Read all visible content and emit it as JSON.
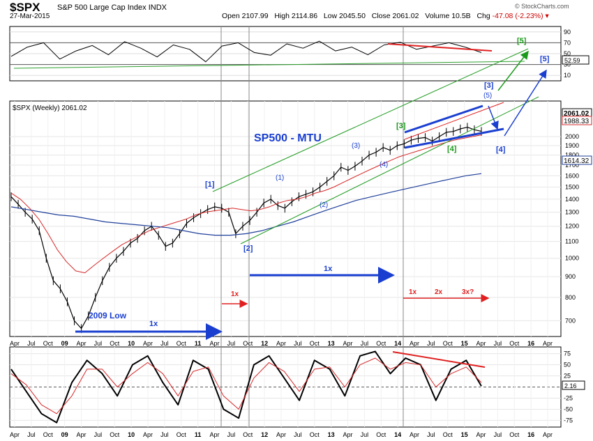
{
  "header": {
    "symbol": "$SPX",
    "name": "S&P 500 Large Cap Index",
    "exchange": "INDX",
    "date": "27-Mar-2015",
    "open_label": "Open",
    "open": "2107.99",
    "high_label": "High",
    "high": "2114.86",
    "low_label": "Low",
    "low": "2045.50",
    "close_label": "Close",
    "close": "2061.02",
    "volume_label": "Volume",
    "volume": "10.5B",
    "chg_label": "Chg",
    "chg": "-47.08 (-2.23%)",
    "credit": "© StockCharts.com"
  },
  "colors": {
    "price": "#000000",
    "ma_fast": "#d62728",
    "ma_slow": "#1f3f9a",
    "channel": "#2ca02c",
    "blue_annot": "#1a3fd0",
    "red_annot": "#e02020",
    "green_annot": "#1a9a1a"
  },
  "chart_data": [
    {
      "type": "line",
      "panel": "rsi",
      "y_ticks": [
        10,
        30,
        50,
        70,
        90
      ],
      "ylim": [
        0,
        100
      ],
      "reference_lines": [
        30,
        70
      ],
      "last_value_label": "52.59",
      "series": [
        {
          "values": [
            45,
            62,
            70,
            40,
            55,
            65,
            48,
            72,
            60,
            44,
            66,
            58,
            35,
            64,
            70,
            52,
            47,
            68,
            60,
            73,
            55,
            62,
            48,
            66,
            71,
            58,
            64,
            70,
            62,
            52
          ]
        }
      ]
    },
    {
      "type": "line",
      "panel": "price",
      "title": "SP500 - MTU",
      "legend": "$SPX (Weekly) 2061.02",
      "scale": "log",
      "ylim": [
        640,
        2450
      ],
      "y_ticks": [
        700,
        800,
        900,
        1000,
        1100,
        1200,
        1300,
        1400,
        1500,
        1600,
        1700,
        1800,
        1900,
        2000
      ],
      "x_ticks": [
        "Apr",
        "Jul",
        "Oct",
        "09",
        "Apr",
        "Jul",
        "Oct",
        "10",
        "Apr",
        "Jul",
        "Oct",
        "11",
        "Apr",
        "Jul",
        "Oct",
        "12",
        "Apr",
        "Jul",
        "Oct",
        "13",
        "Apr",
        "Jul",
        "Oct",
        "14",
        "Apr",
        "Jul",
        "Oct",
        "15",
        "Apr",
        "Jul",
        "Oct",
        "16",
        "Apr"
      ],
      "price_labels": [
        "2061.02",
        "1988.33",
        "1614.32"
      ],
      "x_start": 2008.25,
      "series": [
        {
          "values": [
            1420,
            1360,
            1300,
            1250,
            1170,
            1000,
            880,
            840,
            780,
            700,
            670,
            720,
            800,
            880,
            950,
            1000,
            1040,
            1090,
            1120,
            1170,
            1200,
            1140,
            1070,
            1090,
            1150,
            1220,
            1260,
            1290,
            1320,
            1340,
            1330,
            1300,
            1150,
            1200,
            1240,
            1300,
            1370,
            1400,
            1350,
            1330,
            1380,
            1420,
            1440,
            1460,
            1500,
            1550,
            1600,
            1680,
            1650,
            1690,
            1740,
            1800,
            1830,
            1880,
            1850,
            1900,
            1920,
            1960,
            1980,
            1990,
            1950,
            2000,
            2050,
            2060,
            2090,
            2110,
            2080,
            2061
          ]
        },
        {
          "values": [
            1450,
            1400,
            1330,
            1250,
            1150,
            1050,
            980,
            930,
            920,
            960,
            1000,
            1040,
            1080,
            1110,
            1140,
            1170,
            1190,
            1210,
            1230,
            1250,
            1280,
            1300,
            1310,
            1320,
            1330,
            1320,
            1310,
            1320,
            1340,
            1370,
            1390,
            1400,
            1420,
            1450,
            1470,
            1500,
            1540,
            1580,
            1620,
            1660,
            1700,
            1740,
            1780,
            1810,
            1840,
            1870,
            1900,
            1930,
            1960,
            1980,
            2000,
            2020
          ]
        },
        {
          "values": [
            1340,
            1320,
            1300,
            1280,
            1270,
            1250,
            1230,
            1220,
            1210,
            1200,
            1190,
            1170,
            1150,
            1140,
            1140,
            1150,
            1170,
            1200,
            1230,
            1270,
            1310,
            1350,
            1390,
            1420,
            1450,
            1480,
            1510,
            1540,
            1570,
            1600,
            1620
          ]
        }
      ],
      "annotations": [
        "[1]",
        "[2]",
        "(1)",
        "(2)",
        "(3)",
        "(4)",
        "[3]",
        "[4]",
        "[4]",
        "[3]",
        "(5)",
        "[5]",
        "[5]",
        "2009 Low",
        "1x",
        "1x",
        "1x",
        "1x",
        "2x",
        "3x?"
      ]
    },
    {
      "type": "line",
      "panel": "oscillator",
      "y_ticks": [
        75,
        50,
        25,
        0,
        -25,
        -50,
        -75
      ],
      "ylim": [
        -90,
        90
      ],
      "last_value_label": "2.16",
      "series": [
        {
          "values": [
            40,
            -10,
            -60,
            -80,
            10,
            60,
            30,
            -20,
            50,
            70,
            10,
            -40,
            60,
            40,
            -50,
            -70,
            50,
            70,
            20,
            -30,
            60,
            40,
            -20,
            70,
            80,
            30,
            65,
            50,
            -30,
            40,
            60,
            2
          ]
        },
        {
          "values": [
            30,
            5,
            -40,
            -60,
            -20,
            40,
            40,
            0,
            30,
            55,
            30,
            -20,
            35,
            45,
            -20,
            -50,
            20,
            55,
            35,
            -10,
            40,
            45,
            0,
            50,
            65,
            40,
            55,
            50,
            0,
            30,
            45,
            10
          ]
        }
      ]
    }
  ]
}
